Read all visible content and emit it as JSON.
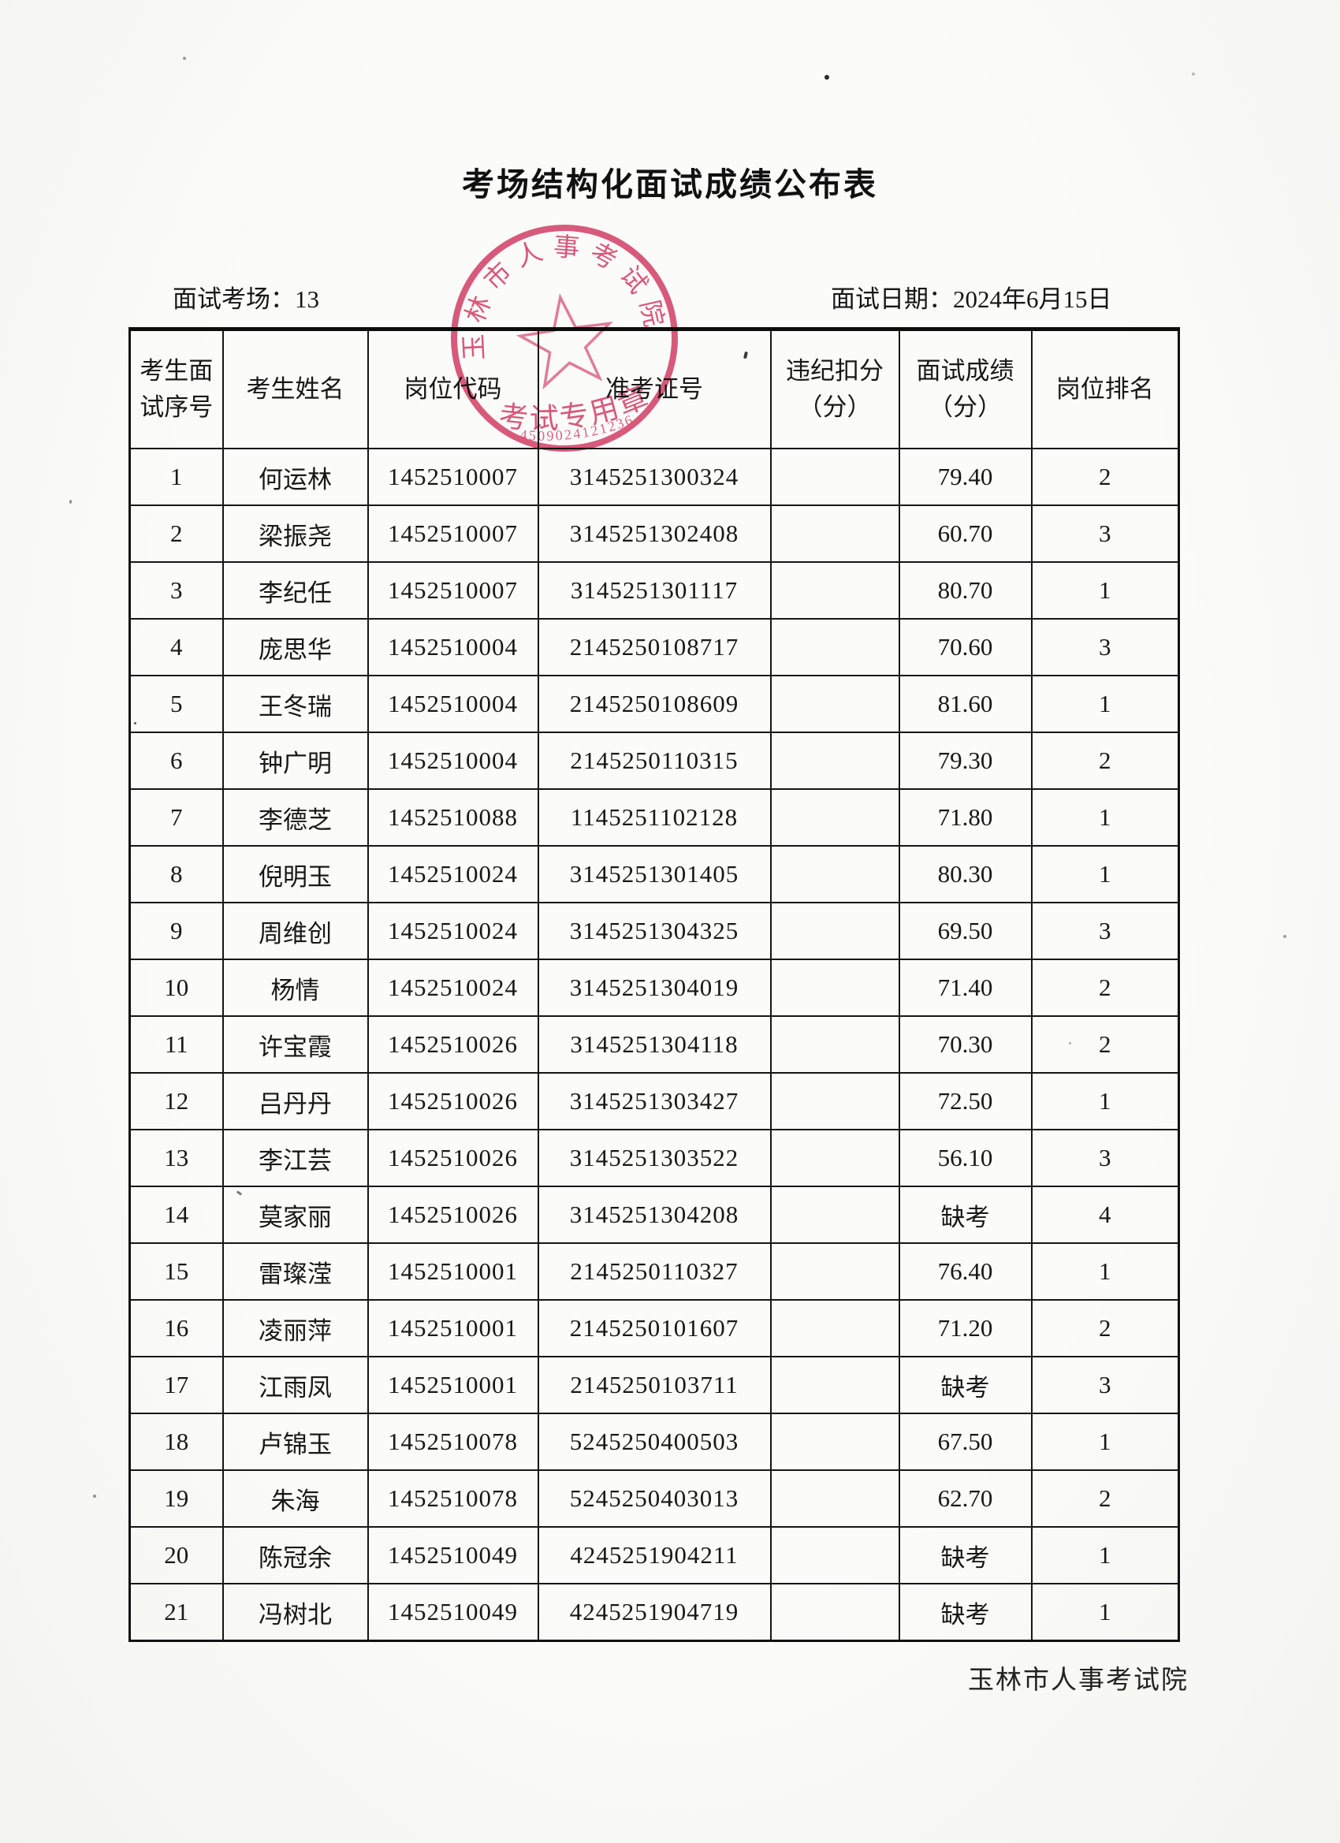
{
  "document": {
    "title": "考场结构化面试成绩公布表",
    "room_label": "面试考场：",
    "room_value": "13",
    "date_label": "面试日期：",
    "date_value": "2024年6月15日",
    "footer": "玉林市人事考试院"
  },
  "stamp": {
    "org_name": "玉林市人事考试院",
    "seal_label": "考试专用章",
    "seal_number": "4509024121236",
    "color": "#d6436a"
  },
  "table": {
    "headers": [
      "考生面\n试序号",
      "考生姓名",
      "岗位代码",
      "准考证号",
      "违纪扣分\n（分）",
      "面试成绩\n（分）",
      "岗位排名"
    ],
    "rows": [
      {
        "seq": "1",
        "name": "何运林",
        "post_code": "1452510007",
        "ticket": "3145251300324",
        "violation": "",
        "score": "79.40",
        "rank": "2"
      },
      {
        "seq": "2",
        "name": "梁振尧",
        "post_code": "1452510007",
        "ticket": "3145251302408",
        "violation": "",
        "score": "60.70",
        "rank": "3"
      },
      {
        "seq": "3",
        "name": "李纪任",
        "post_code": "1452510007",
        "ticket": "3145251301117",
        "violation": "",
        "score": "80.70",
        "rank": "1"
      },
      {
        "seq": "4",
        "name": "庞思华",
        "post_code": "1452510004",
        "ticket": "2145250108717",
        "violation": "",
        "score": "70.60",
        "rank": "3"
      },
      {
        "seq": "5",
        "name": "王冬瑞",
        "post_code": "1452510004",
        "ticket": "2145250108609",
        "violation": "",
        "score": "81.60",
        "rank": "1"
      },
      {
        "seq": "6",
        "name": "钟广明",
        "post_code": "1452510004",
        "ticket": "2145250110315",
        "violation": "",
        "score": "79.30",
        "rank": "2"
      },
      {
        "seq": "7",
        "name": "李德芝",
        "post_code": "1452510088",
        "ticket": "1145251102128",
        "violation": "",
        "score": "71.80",
        "rank": "1"
      },
      {
        "seq": "8",
        "name": "倪明玉",
        "post_code": "1452510024",
        "ticket": "3145251301405",
        "violation": "",
        "score": "80.30",
        "rank": "1"
      },
      {
        "seq": "9",
        "name": "周维创",
        "post_code": "1452510024",
        "ticket": "3145251304325",
        "violation": "",
        "score": "69.50",
        "rank": "3"
      },
      {
        "seq": "10",
        "name": "杨情",
        "post_code": "1452510024",
        "ticket": "3145251304019",
        "violation": "",
        "score": "71.40",
        "rank": "2"
      },
      {
        "seq": "11",
        "name": "许宝霞",
        "post_code": "1452510026",
        "ticket": "3145251304118",
        "violation": "",
        "score": "70.30",
        "rank": "2"
      },
      {
        "seq": "12",
        "name": "吕丹丹",
        "post_code": "1452510026",
        "ticket": "3145251303427",
        "violation": "",
        "score": "72.50",
        "rank": "1"
      },
      {
        "seq": "13",
        "name": "李江芸",
        "post_code": "1452510026",
        "ticket": "3145251303522",
        "violation": "",
        "score": "56.10",
        "rank": "3"
      },
      {
        "seq": "14",
        "name": "莫家丽",
        "post_code": "1452510026",
        "ticket": "3145251304208",
        "violation": "",
        "score": "缺考",
        "rank": "4"
      },
      {
        "seq": "15",
        "name": "雷璨滢",
        "post_code": "1452510001",
        "ticket": "2145250110327",
        "violation": "",
        "score": "76.40",
        "rank": "1"
      },
      {
        "seq": "16",
        "name": "凌丽萍",
        "post_code": "1452510001",
        "ticket": "2145250101607",
        "violation": "",
        "score": "71.20",
        "rank": "2"
      },
      {
        "seq": "17",
        "name": "江雨凤",
        "post_code": "1452510001",
        "ticket": "2145250103711",
        "violation": "",
        "score": "缺考",
        "rank": "3"
      },
      {
        "seq": "18",
        "name": "卢锦玉",
        "post_code": "1452510078",
        "ticket": "5245250400503",
        "violation": "",
        "score": "67.50",
        "rank": "1"
      },
      {
        "seq": "19",
        "name": "朱海",
        "post_code": "1452510078",
        "ticket": "5245250403013",
        "violation": "",
        "score": "62.70",
        "rank": "2"
      },
      {
        "seq": "20",
        "name": "陈冠余",
        "post_code": "1452510049",
        "ticket": "4245251904211",
        "violation": "",
        "score": "缺考",
        "rank": "1"
      },
      {
        "seq": "21",
        "name": "冯树北",
        "post_code": "1452510049",
        "ticket": "4245251904719",
        "violation": "",
        "score": "缺考",
        "rank": "1"
      }
    ]
  }
}
